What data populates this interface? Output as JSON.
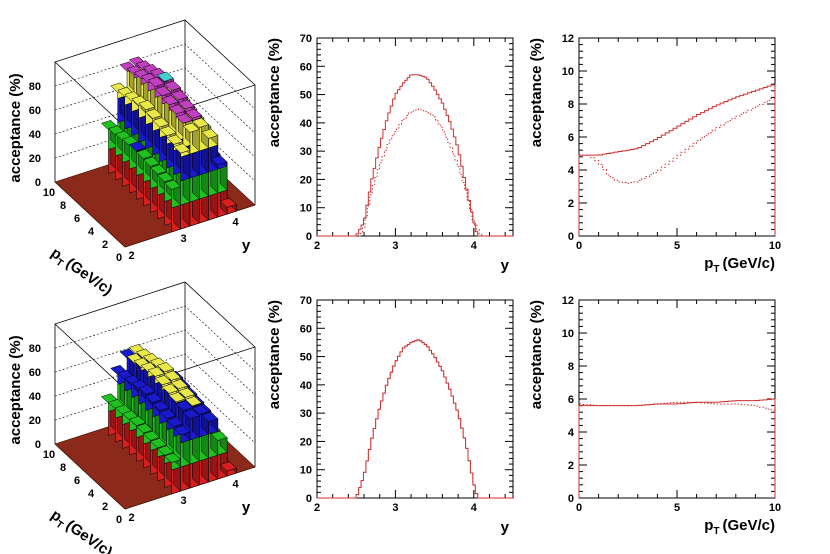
{
  "chart_data": [
    {
      "type": "3d-lego-histogram",
      "id": "top-left",
      "zlabel": "acceptance (%)",
      "ylabel": "p",
      "ylabel_sub": "T",
      "ylabel_unit": "(GeV/c)",
      "xlabel": "y",
      "z_ticks": [
        "0",
        "20",
        "40",
        "60",
        "80"
      ],
      "pt_ticks": [
        "10",
        "8",
        "6",
        "4",
        "2",
        "0"
      ],
      "y_ticks": [
        "2",
        "3",
        "4"
      ],
      "band_colors": [
        "#d62020",
        "#20c020",
        "#1a1acc",
        "#e8e84a",
        "#c040c0",
        "#40d0d0"
      ],
      "band_edges": [
        0,
        20,
        40,
        60,
        80,
        90
      ],
      "peak": 92
    },
    {
      "type": "line",
      "id": "top-middle",
      "ylabel": "acceptance (%)",
      "xlabel": "y",
      "xlim": [
        2,
        4.5
      ],
      "ylim": [
        0,
        70
      ],
      "x_ticks": [
        "2",
        "3",
        "4"
      ],
      "y_ticks": [
        "0",
        "10",
        "20",
        "30",
        "40",
        "50",
        "60",
        "70"
      ],
      "series": [
        {
          "name": "solid",
          "style": "solid",
          "x": [
            2.5,
            2.6,
            2.7,
            2.8,
            2.9,
            3.0,
            3.1,
            3.2,
            3.3,
            3.4,
            3.5,
            3.6,
            3.7,
            3.8,
            3.9,
            4.0,
            4.05
          ],
          "values": [
            0,
            5,
            20,
            32,
            42,
            50,
            54,
            57,
            57,
            56,
            52,
            47,
            40,
            31,
            18,
            5,
            0
          ]
        },
        {
          "name": "dotted",
          "style": "dotted",
          "x": [
            2.55,
            2.6,
            2.7,
            2.8,
            2.9,
            3.0,
            3.1,
            3.2,
            3.3,
            3.4,
            3.5,
            3.6,
            3.7,
            3.8,
            3.9,
            4.0,
            4.1
          ],
          "values": [
            0,
            3,
            16,
            25,
            32,
            37,
            41,
            44,
            45,
            44,
            42,
            38,
            32,
            25,
            16,
            5,
            0
          ]
        }
      ]
    },
    {
      "type": "line",
      "id": "top-right",
      "ylabel": "acceptance (%)",
      "xlabel": "p",
      "xlabel_sub": "T",
      "xlabel_unit": "(GeV/c)",
      "xlim": [
        0,
        10
      ],
      "ylim": [
        0,
        12
      ],
      "x_ticks": [
        "0",
        "5",
        "10"
      ],
      "y_ticks": [
        "0",
        "2",
        "4",
        "6",
        "8",
        "10",
        "12"
      ],
      "series": [
        {
          "name": "solid",
          "style": "solid",
          "x": [
            0,
            1,
            2,
            3,
            4,
            5,
            6,
            7,
            8,
            9,
            10
          ],
          "values": [
            4.9,
            4.9,
            5.1,
            5.3,
            5.9,
            6.6,
            7.3,
            7.9,
            8.4,
            8.8,
            9.2
          ]
        },
        {
          "name": "dotted",
          "style": "dotted",
          "x": [
            0,
            0.5,
            1,
            1.5,
            2,
            2.5,
            3,
            4,
            5,
            6,
            7,
            8,
            9,
            10
          ],
          "values": [
            4.9,
            4.9,
            4.5,
            3.7,
            3.3,
            3.2,
            3.3,
            3.9,
            4.8,
            5.7,
            6.5,
            7.2,
            7.8,
            8.4
          ]
        }
      ]
    },
    {
      "type": "3d-lego-histogram",
      "id": "bottom-left",
      "zlabel": "acceptance (%)",
      "ylabel": "p",
      "ylabel_sub": "T",
      "ylabel_unit": "(GeV/c)",
      "xlabel": "y",
      "z_ticks": [
        "0",
        "20",
        "40",
        "60",
        "80"
      ],
      "pt_ticks": [
        "10",
        "8",
        "6",
        "4",
        "2",
        "0"
      ],
      "y_ticks": [
        "2",
        "3",
        "4"
      ],
      "band_colors": [
        "#d62020",
        "#20c020",
        "#1a1acc",
        "#e8e84a"
      ],
      "band_edges": [
        0,
        20,
        40,
        60,
        70
      ],
      "peak": 68
    },
    {
      "type": "line",
      "id": "bottom-middle",
      "ylabel": "acceptance (%)",
      "xlabel": "y",
      "xlim": [
        2,
        4.5
      ],
      "ylim": [
        0,
        70
      ],
      "x_ticks": [
        "2",
        "3",
        "4"
      ],
      "y_ticks": [
        "0",
        "10",
        "20",
        "30",
        "40",
        "50",
        "60",
        "70"
      ],
      "series": [
        {
          "name": "solid",
          "style": "solid",
          "x": [
            2.5,
            2.6,
            2.7,
            2.8,
            2.9,
            3.0,
            3.1,
            3.2,
            3.3,
            3.4,
            3.5,
            3.6,
            3.7,
            3.8,
            3.9,
            4.0,
            4.05
          ],
          "values": [
            0,
            8,
            21,
            32,
            41,
            48,
            53,
            55,
            56,
            54,
            50,
            45,
            38,
            30,
            19,
            5,
            0
          ]
        },
        {
          "name": "dotted",
          "style": "dotted",
          "x": [
            2.5,
            2.6,
            2.7,
            2.8,
            2.9,
            3.0,
            3.1,
            3.2,
            3.3,
            3.4,
            3.5,
            3.6,
            3.7,
            3.8,
            3.9,
            4.0,
            4.05
          ],
          "values": [
            0,
            8,
            21,
            32,
            41,
            48,
            53,
            55,
            56,
            54,
            50,
            45,
            38,
            30,
            19,
            5,
            0
          ]
        }
      ]
    },
    {
      "type": "line",
      "id": "bottom-right",
      "ylabel": "acceptance (%)",
      "xlabel": "p",
      "xlabel_sub": "T",
      "xlabel_unit": "(GeV/c)",
      "xlim": [
        0,
        10
      ],
      "ylim": [
        0,
        12
      ],
      "x_ticks": [
        "0",
        "5",
        "10"
      ],
      "y_ticks": [
        "0",
        "2",
        "4",
        "6",
        "8",
        "10",
        "12"
      ],
      "series": [
        {
          "name": "solid",
          "style": "solid",
          "x": [
            0,
            1,
            2,
            3,
            4,
            5,
            6,
            7,
            8,
            9,
            10
          ],
          "values": [
            5.6,
            5.6,
            5.6,
            5.6,
            5.7,
            5.7,
            5.8,
            5.8,
            5.9,
            5.9,
            6.0
          ]
        },
        {
          "name": "dotted",
          "style": "dotted",
          "x": [
            0,
            1,
            2,
            3,
            4,
            5,
            6,
            7,
            8,
            9,
            10
          ],
          "values": [
            5.7,
            5.6,
            5.6,
            5.6,
            5.7,
            5.8,
            5.8,
            5.7,
            5.7,
            5.6,
            5.3
          ]
        }
      ]
    }
  ]
}
